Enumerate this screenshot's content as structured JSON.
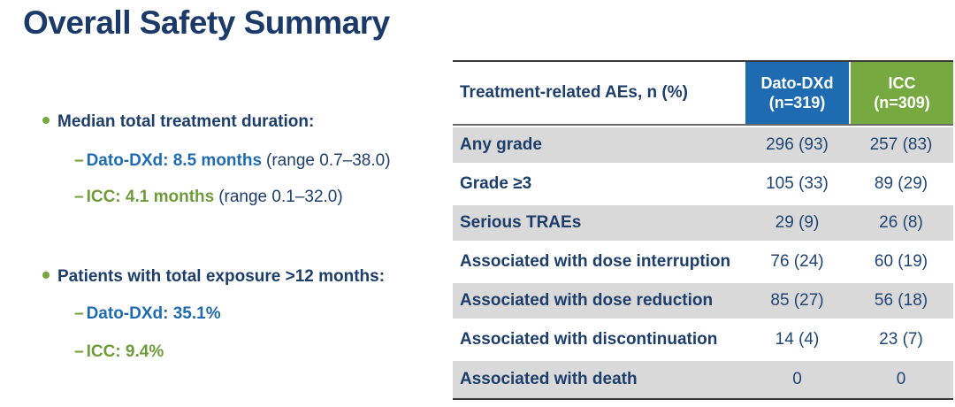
{
  "title": "Overall Safety Summary",
  "colors": {
    "navy_text": "#1d3e6b",
    "blue_accent": "#1e6bb2",
    "green_accent": "#76a93f",
    "row_band_gray": "#d9d9d9",
    "border_dark": "#3a3a3a"
  },
  "icons": {
    "bullet": "round-green-dot",
    "dash": "–"
  },
  "bullets": [
    {
      "label": "Median total treatment duration:",
      "subs": [
        {
          "lead": "Dato-DXd: 8.5 months",
          "note": "(range 0.7–38.0)"
        },
        {
          "lead": "ICC: 4.1 months",
          "note": "(range 0.1–32.0)"
        }
      ]
    },
    {
      "label": "Patients with total exposure >12 months:",
      "subs": [
        {
          "lead": "Dato-DXd: 35.1%",
          "note": ""
        },
        {
          "lead": "ICC: 9.4%",
          "note": ""
        }
      ]
    }
  ],
  "table": {
    "header": {
      "label": "Treatment-related AEs, n (%)",
      "dato_line1": "Dato-DXd",
      "dato_line2": "(n=319)",
      "icc_line1": "ICC",
      "icc_line2": "(n=309)"
    },
    "rows": [
      {
        "label": "Any grade",
        "dato": "296 (93)",
        "icc": "257 (83)"
      },
      {
        "label": "Grade ≥3",
        "dato": "105 (33)",
        "icc": "89 (29)"
      },
      {
        "label": "Serious TRAEs",
        "dato": "29 (9)",
        "icc": "26 (8)"
      },
      {
        "label": "Associated with dose interruption",
        "dato": "76 (24)",
        "icc": "60 (19)"
      },
      {
        "label": "Associated with dose reduction",
        "dato": "85 (27)",
        "icc": "56 (18)"
      },
      {
        "label": "Associated with discontinuation",
        "dato": "14 (4)",
        "icc": "23 (7)"
      },
      {
        "label": "Associated with death",
        "dato": "0",
        "icc": "0"
      }
    ]
  }
}
